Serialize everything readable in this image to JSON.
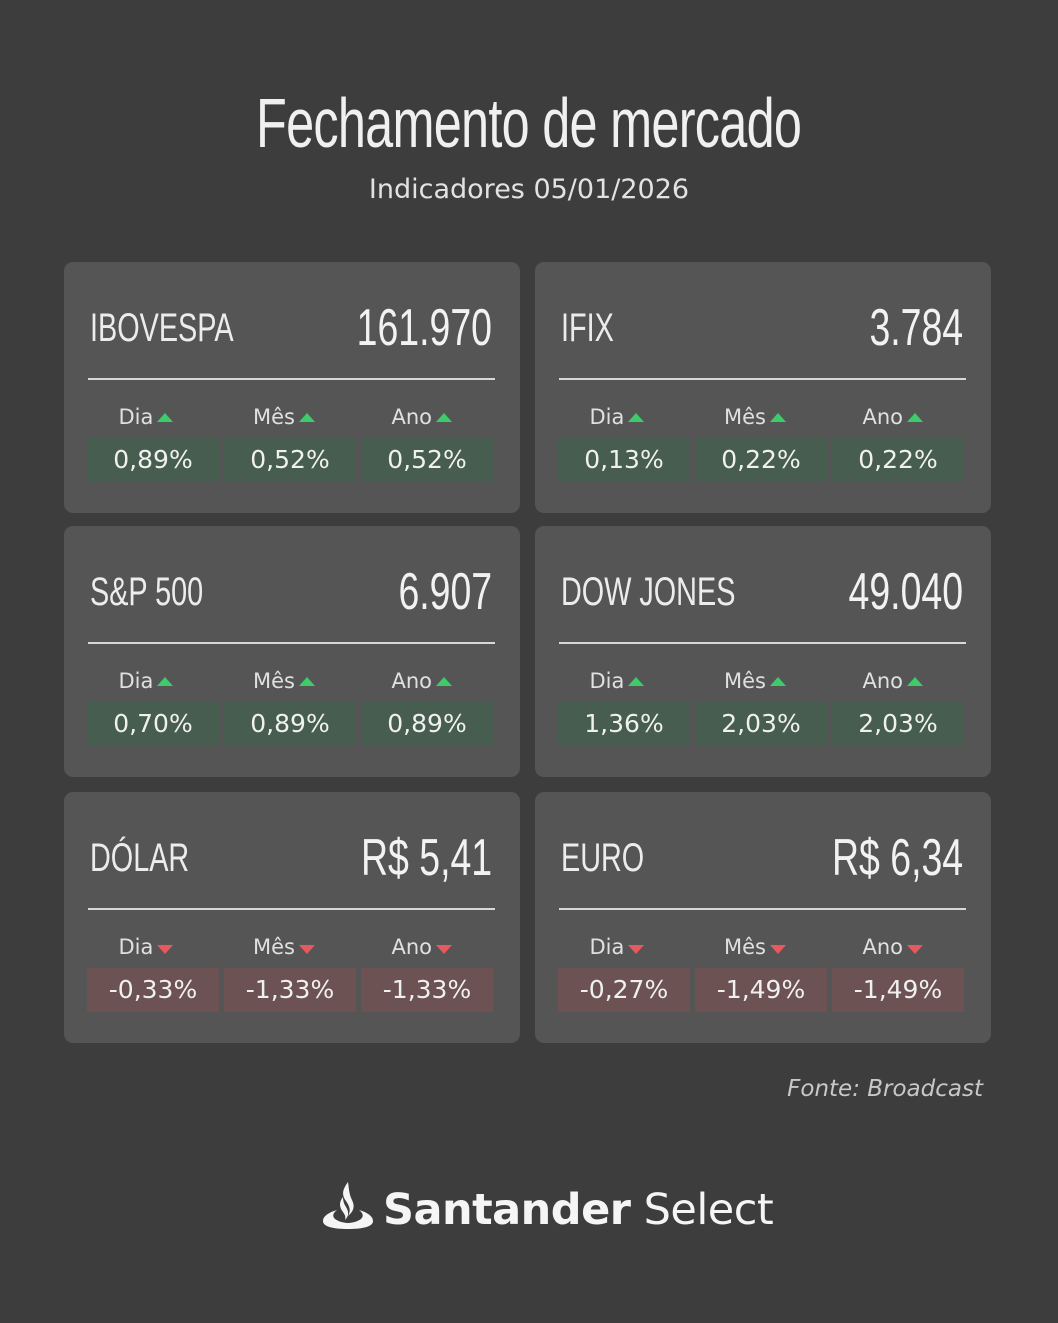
{
  "header": {
    "title": "Fechamento de mercado",
    "subtitle": "Indicadores 05/01/2026"
  },
  "colors": {
    "background": "#3d3d3d",
    "card": "#555555",
    "positive_arrow": "#3ecb6a",
    "negative_arrow": "#e8585c",
    "positive_cell": "#465d4f",
    "negative_cell": "#6c5252"
  },
  "cards": [
    {
      "name": "IBOVESPA",
      "value": "161.970",
      "periods": [
        {
          "label": "Dia",
          "change": "0,89%",
          "direction": "up"
        },
        {
          "label": "Mês",
          "change": "0,52%",
          "direction": "up"
        },
        {
          "label": "Ano",
          "change": "0,52%",
          "direction": "up"
        }
      ]
    },
    {
      "name": "IFIX",
      "value": "3.784",
      "periods": [
        {
          "label": "Dia",
          "change": "0,13%",
          "direction": "up"
        },
        {
          "label": "Mês",
          "change": "0,22%",
          "direction": "up"
        },
        {
          "label": "Ano",
          "change": "0,22%",
          "direction": "up"
        }
      ]
    },
    {
      "name": "S&P 500",
      "value": "6.907",
      "periods": [
        {
          "label": "Dia",
          "change": "0,70%",
          "direction": "up"
        },
        {
          "label": "Mês",
          "change": "0,89%",
          "direction": "up"
        },
        {
          "label": "Ano",
          "change": "0,89%",
          "direction": "up"
        }
      ]
    },
    {
      "name": "DOW JONES",
      "value": "49.040",
      "periods": [
        {
          "label": "Dia",
          "change": "1,36%",
          "direction": "up"
        },
        {
          "label": "Mês",
          "change": "2,03%",
          "direction": "up"
        },
        {
          "label": "Ano",
          "change": "2,03%",
          "direction": "up"
        }
      ]
    },
    {
      "name": "DÓLAR",
      "value": "R$ 5,41",
      "periods": [
        {
          "label": "Dia",
          "change": "-0,33%",
          "direction": "down"
        },
        {
          "label": "Mês",
          "change": "-1,33%",
          "direction": "down"
        },
        {
          "label": "Ano",
          "change": "-1,33%",
          "direction": "down"
        }
      ]
    },
    {
      "name": "EURO",
      "value": "R$ 6,34",
      "periods": [
        {
          "label": "Dia",
          "change": "-0,27%",
          "direction": "down"
        },
        {
          "label": "Mês",
          "change": "-1,49%",
          "direction": "down"
        },
        {
          "label": "Ano",
          "change": "-1,49%",
          "direction": "down"
        }
      ]
    }
  ],
  "footer": {
    "source": "Fonte: Broadcast",
    "logo_brand": "Santander",
    "logo_product": "Select",
    "logo_icon": "flame-icon"
  }
}
